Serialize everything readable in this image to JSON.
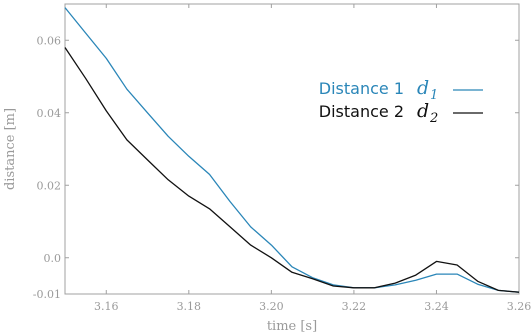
{
  "chart_data": {
    "type": "line",
    "title": "",
    "xlabel": "time [s]",
    "ylabel": "distance [m]",
    "xlim": [
      3.15,
      3.26
    ],
    "ylim": [
      -0.01,
      0.07
    ],
    "xticks": [
      3.16,
      3.18,
      3.2,
      3.22,
      3.24,
      3.26
    ],
    "xtick_labels": [
      "3.16",
      "3.18",
      "3.20",
      "3.22",
      "3.24",
      "3.26"
    ],
    "yticks": [
      -0.01,
      0.0,
      0.02,
      0.04,
      0.06
    ],
    "ytick_labels": [
      "-0.01",
      "0.0",
      "0.02",
      "0.04",
      "0.06"
    ],
    "grid": false,
    "legend_position": "top-right",
    "series": [
      {
        "name": "Distance 1",
        "symbol": "d",
        "subscript": "1",
        "color": "#2a86b8",
        "x": [
          3.15,
          3.155,
          3.16,
          3.165,
          3.17,
          3.175,
          3.18,
          3.185,
          3.19,
          3.195,
          3.2,
          3.205,
          3.21,
          3.215,
          3.22,
          3.225,
          3.23,
          3.235,
          3.24,
          3.245,
          3.25,
          3.255,
          3.26
        ],
        "y": [
          0.069,
          0.062,
          0.055,
          0.0465,
          0.04,
          0.0335,
          0.028,
          0.023,
          0.0155,
          0.0085,
          0.0035,
          -0.0025,
          -0.0055,
          -0.0075,
          -0.0083,
          -0.0083,
          -0.0075,
          -0.0062,
          -0.0045,
          -0.0045,
          -0.0073,
          -0.009,
          -0.0095
        ]
      },
      {
        "name": "Distance 2",
        "symbol": "d",
        "subscript": "2",
        "color": "#111111",
        "x": [
          3.15,
          3.155,
          3.16,
          3.165,
          3.17,
          3.175,
          3.18,
          3.185,
          3.19,
          3.195,
          3.2,
          3.205,
          3.21,
          3.215,
          3.22,
          3.225,
          3.23,
          3.235,
          3.24,
          3.245,
          3.25,
          3.255,
          3.26
        ],
        "y": [
          0.058,
          0.0495,
          0.0405,
          0.0325,
          0.027,
          0.0215,
          0.017,
          0.0135,
          0.0085,
          0.0035,
          0.0,
          -0.004,
          -0.0058,
          -0.0078,
          -0.0083,
          -0.0083,
          -0.007,
          -0.0048,
          -0.001,
          -0.002,
          -0.0065,
          -0.009,
          -0.0095
        ]
      }
    ]
  }
}
